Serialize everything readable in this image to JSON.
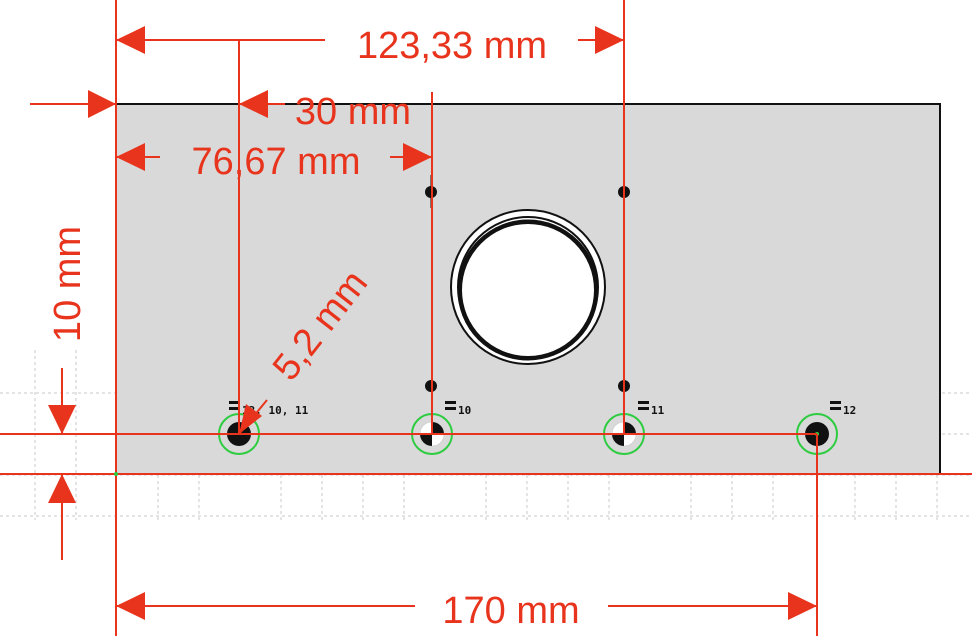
{
  "colors": {
    "dimension": "#e8341c",
    "plate": "#d9d9d9",
    "edge": "#111111",
    "grid": "#bdbdbd",
    "selection": "#2ecc40",
    "hole": "#ffffff"
  },
  "dimensions": {
    "top_width": "123,33 mm",
    "inner_30": "30 mm",
    "inner_76": "76,67 mm",
    "left_10": "10 mm",
    "hole_diameter": "5,2 mm",
    "bottom_170": "170 mm"
  },
  "constraints": {
    "equal_first": "12, 10, 11",
    "equal_second": "10",
    "equal_third": "11",
    "equal_fourth": "12"
  },
  "icons": {
    "equal": "equal-constraint-icon",
    "arrow": "dimension-arrow-icon"
  }
}
